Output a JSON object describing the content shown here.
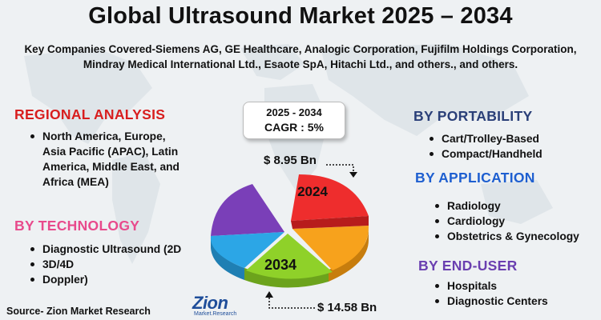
{
  "header": {
    "title": "Global Ultrasound Market 2025 – 2034",
    "subtitle": "Key Companies Covered-Siemens AG, GE Healthcare, Analogic Corporation, Fujifilm Holdings Corporation, Mindray Medical International Ltd., Esaote SpA, Hitachi Ltd., and others., and others."
  },
  "colors": {
    "regional": "#d81e1e",
    "technology": "#e84a8c",
    "portability": "#2a3f78",
    "application": "#1e5fd0",
    "end_user": "#6a3fb0",
    "pie_red": "#ee2d2d",
    "pie_orange": "#f7a21c",
    "pie_green": "#8fd129",
    "pie_blue": "#2ca6e6",
    "pie_purple": "#7a3fb8"
  },
  "regional_analysis": {
    "heading": "REGIONAL ANALYSIS",
    "items": [
      "North America, Europe, Asia Pacific (APAC), Latin America, Middle East, and Africa (MEA)"
    ]
  },
  "technology": {
    "heading": "BY TECHNOLOGY",
    "items": [
      "Diagnostic Ultrasound (2D",
      "3D/4D",
      "Doppler)"
    ]
  },
  "portability": {
    "heading": "BY PORTABILITY",
    "items": [
      "Cart/Trolley-Based",
      "Compact/Handheld"
    ]
  },
  "application": {
    "heading": "BY APPLICATION",
    "items": [
      "Radiology",
      "Cardiology",
      "Obstetrics & Gynecology"
    ]
  },
  "end_user": {
    "heading": "BY END-USER",
    "items": [
      "Hospitals",
      "Diagnostic Centers"
    ]
  },
  "cagr": {
    "period": "2025 - 2034",
    "value": "CAGR : 5%"
  },
  "market": {
    "value_2024": "$ 8.95 Bn",
    "value_2034": "$ 14.58 Bn",
    "label_2024": "2024",
    "label_2034": "2034"
  },
  "source": "Source- Zion Market Research",
  "logo": {
    "name": "Zion",
    "tagline": "Market.Research"
  }
}
